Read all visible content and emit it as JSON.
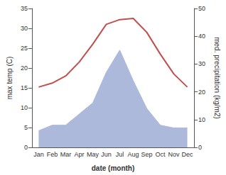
{
  "chart_data": {
    "type": "line",
    "xlabel": "date (month)",
    "ylabel": "max temp (C)",
    "y2label": "med. precipitation (kg/m2)",
    "categories": [
      "Jan",
      "Feb",
      "Mar",
      "Apr",
      "May",
      "Jun",
      "Jul",
      "Aug",
      "Sep",
      "Oct",
      "Nov",
      "Dec"
    ],
    "series": [
      {
        "type": "area",
        "axis": "y2",
        "color": "#adb9da",
        "values": [
          6,
          8,
          8,
          12,
          16,
          27,
          35,
          24,
          14,
          8,
          7,
          7
        ]
      },
      {
        "type": "line",
        "axis": "y",
        "color": "#c0504d",
        "values": [
          15.2,
          16.2,
          18.0,
          21.5,
          26.0,
          31.0,
          32.2,
          32.5,
          29.0,
          23.5,
          18.5,
          15.2
        ]
      }
    ],
    "ylim": [
      0,
      35
    ],
    "yticks": [
      0,
      5,
      10,
      15,
      20,
      25,
      30,
      35
    ],
    "y2lim": [
      0,
      50
    ],
    "y2ticks": [
      0,
      10,
      20,
      30,
      40,
      50
    ],
    "grid": false
  }
}
